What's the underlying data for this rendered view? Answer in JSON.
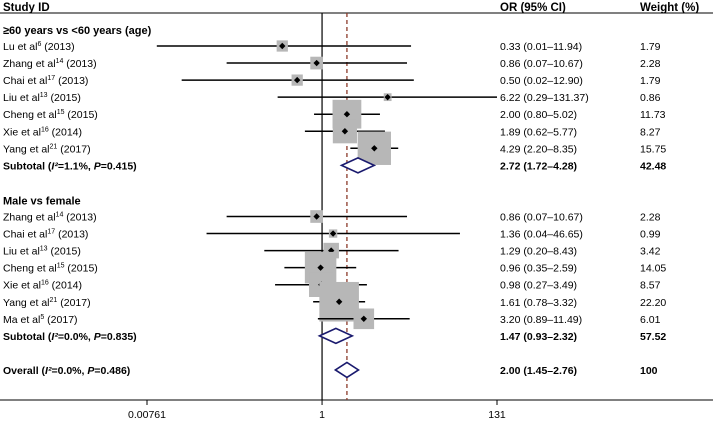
{
  "chart_data": {
    "type": "forest",
    "headers": {
      "study": "Study ID",
      "or": "OR (95% CI)",
      "weight": "Weight (%)"
    },
    "x_scale": "log",
    "xlim": [
      0.00761,
      131
    ],
    "null_line": 1,
    "overall_line": 2.0,
    "x_ticks": [
      {
        "value": 0.00761,
        "label": "0.00761"
      },
      {
        "value": 1,
        "label": "1"
      },
      {
        "value": 131,
        "label": "131"
      }
    ],
    "groups": [
      {
        "title": "≥60 years vs <60 years (age)",
        "studies": [
          {
            "name": "Lu et al",
            "ref": "6",
            "year": "(2013)",
            "or": 0.33,
            "lo": 0.01,
            "hi": 11.94,
            "ci_text": "0.33 (0.01–11.94)",
            "weight": "1.79"
          },
          {
            "name": "Zhang et al",
            "ref": "14",
            "year": "(2013)",
            "or": 0.86,
            "lo": 0.07,
            "hi": 10.67,
            "ci_text": "0.86 (0.07–10.67)",
            "weight": "2.28"
          },
          {
            "name": "Chai et al",
            "ref": "17",
            "year": "(2013)",
            "or": 0.5,
            "lo": 0.02,
            "hi": 12.9,
            "ci_text": "0.50 (0.02–12.90)",
            "weight": "1.79"
          },
          {
            "name": "Liu et al",
            "ref": "13",
            "year": "(2015)",
            "or": 6.22,
            "lo": 0.29,
            "hi": 131.37,
            "ci_text": "6.22 (0.29–131.37)",
            "weight": "0.86"
          },
          {
            "name": "Cheng et al",
            "ref": "15",
            "year": "(2015)",
            "or": 2.0,
            "lo": 0.8,
            "hi": 5.02,
            "ci_text": "2.00 (0.80–5.02)",
            "weight": "11.73"
          },
          {
            "name": "Xie et al",
            "ref": "16",
            "year": "(2014)",
            "or": 1.89,
            "lo": 0.62,
            "hi": 5.77,
            "ci_text": "1.89 (0.62–5.77)",
            "weight": "8.27"
          },
          {
            "name": "Yang et al",
            "ref": "21",
            "year": "(2017)",
            "or": 4.29,
            "lo": 2.2,
            "hi": 8.35,
            "ci_text": "4.29 (2.20–8.35)",
            "weight": "15.75"
          }
        ],
        "subtotal": {
          "pre": "Subtotal (",
          "i2": "I²",
          "stats": "=1.1%, ",
          "p": "P",
          "pval": "=0.415)",
          "or": 2.72,
          "lo": 1.72,
          "hi": 4.28,
          "ci_text": "2.72 (1.72–4.28)",
          "weight": "42.48"
        }
      },
      {
        "title": "Male vs female",
        "studies": [
          {
            "name": "Zhang et al",
            "ref": "14",
            "year": "(2013)",
            "or": 0.86,
            "lo": 0.07,
            "hi": 10.67,
            "ci_text": "0.86 (0.07–10.67)",
            "weight": "2.28"
          },
          {
            "name": "Chai et al",
            "ref": "17",
            "year": "(2013)",
            "or": 1.36,
            "lo": 0.04,
            "hi": 46.65,
            "ci_text": "1.36 (0.04–46.65)",
            "weight": "0.99"
          },
          {
            "name": "Liu et al",
            "ref": "13",
            "year": "(2015)",
            "or": 1.29,
            "lo": 0.2,
            "hi": 8.43,
            "ci_text": "1.29 (0.20–8.43)",
            "weight": "3.42"
          },
          {
            "name": "Cheng et al",
            "ref": "15",
            "year": "(2015)",
            "or": 0.96,
            "lo": 0.35,
            "hi": 2.59,
            "ci_text": "0.96 (0.35–2.59)",
            "weight": "14.05"
          },
          {
            "name": "Xie et al",
            "ref": "16",
            "year": "(2014)",
            "or": 0.98,
            "lo": 0.27,
            "hi": 3.49,
            "ci_text": "0.98 (0.27–3.49)",
            "weight": "8.57"
          },
          {
            "name": "Yang et al",
            "ref": "21",
            "year": "(2017)",
            "or": 1.61,
            "lo": 0.78,
            "hi": 3.32,
            "ci_text": "1.61 (0.78–3.32)",
            "weight": "22.20"
          },
          {
            "name": "Ma et al",
            "ref": "5",
            "year": "(2017)",
            "or": 3.2,
            "lo": 0.89,
            "hi": 11.49,
            "ci_text": "3.20 (0.89–11.49)",
            "weight": "6.01"
          }
        ],
        "subtotal": {
          "pre": "Subtotal (",
          "i2": "I²",
          "stats": "=0.0%, ",
          "p": "P",
          "pval": "=0.835)",
          "or": 1.47,
          "lo": 0.93,
          "hi": 2.32,
          "ci_text": "1.47 (0.93–2.32)",
          "weight": "57.52"
        }
      }
    ],
    "overall": {
      "pre": "Overall (",
      "i2": "I²",
      "stats": "=0.0%, ",
      "p": "P",
      "pval": "=0.486)",
      "or": 2.0,
      "lo": 1.45,
      "hi": 2.76,
      "ci_text": "2.00 (1.45–2.76)",
      "weight": "100"
    },
    "colors": {
      "box": "#b7b7b7",
      "diamond": "#1a1a6e",
      "reference_line": "#8b3a2a"
    }
  }
}
